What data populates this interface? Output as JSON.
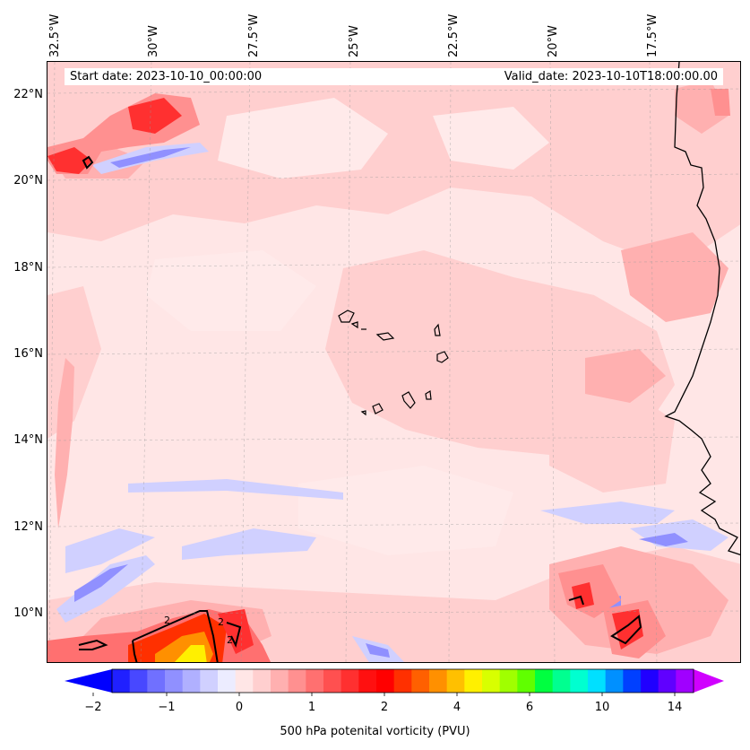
{
  "header": {
    "start_date": "Start date: 2023-10-10_00:00:00",
    "valid_date": "Valid_date: 2023-10-10T18:00:00.00"
  },
  "axes": {
    "lon_labels": [
      "32.5°W",
      "30°W",
      "27.5°W",
      "25°W",
      "22.5°W",
      "20°W",
      "17.5°W"
    ],
    "lat_labels": [
      "22°N",
      "20°N",
      "18°N",
      "16°N",
      "14°N",
      "12°N",
      "10°N"
    ]
  },
  "colorbar": {
    "label": "500 hPa potenital vorticity (PVU)",
    "ticks": [
      "−2",
      "−1",
      "0",
      "1",
      "2",
      "4",
      "6",
      "10",
      "14"
    ],
    "colors": [
      "#2020ff",
      "#4848ff",
      "#7070ff",
      "#9090ff",
      "#b0b0ff",
      "#d0d0ff",
      "#ececff",
      "#ffe6e6",
      "#ffcfcf",
      "#ffb0b0",
      "#ff9090",
      "#ff7070",
      "#ff5050",
      "#ff3030",
      "#ff1010",
      "#ff0000",
      "#ff3000",
      "#ff6000",
      "#ff9000",
      "#ffc000",
      "#fff000",
      "#d8ff00",
      "#a0ff00",
      "#60ff00",
      "#00ff40",
      "#00ff90",
      "#00ffd0",
      "#00e0ff",
      "#0090ff",
      "#0040ff",
      "#2000ff",
      "#6000ff",
      "#a000ff"
    ],
    "under_color": "#0000ff",
    "over_color": "#d000ff"
  },
  "contour_level_label": "2",
  "colors": {
    "background_field": "#ffe6e6",
    "light_pink": "#ffcfcf",
    "mid_pink": "#ffb0b0",
    "red": "#ff3030",
    "light_blue": "#d0d0ff",
    "blue": "#9090ff",
    "coastline": "#000000"
  }
}
